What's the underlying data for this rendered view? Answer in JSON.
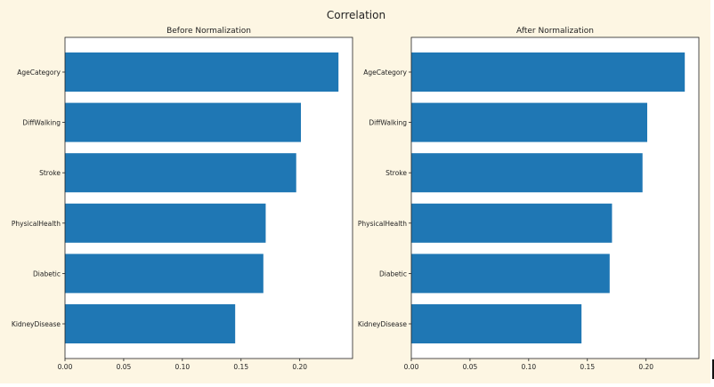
{
  "figure": {
    "suptitle": "Correlation",
    "background": "#fdf6e3",
    "bar_color": "#1f77b4"
  },
  "chart_data": [
    {
      "type": "bar",
      "orientation": "horizontal",
      "title": "Before Normalization",
      "categories": [
        "AgeCategory",
        "DiffWalking",
        "Stroke",
        "PhysicalHealth",
        "Diabetic",
        "KidneyDisease"
      ],
      "values": [
        0.233,
        0.201,
        0.197,
        0.171,
        0.169,
        0.145
      ],
      "xlim": [
        0,
        0.245
      ],
      "xticks": [
        0.0,
        0.05,
        0.1,
        0.15,
        0.2
      ],
      "xtick_labels": [
        "0.00",
        "0.05",
        "0.10",
        "0.15",
        "0.20"
      ],
      "xlabel": "",
      "ylabel": "",
      "grid": false
    },
    {
      "type": "bar",
      "orientation": "horizontal",
      "title": "After Normalization",
      "categories": [
        "AgeCategory",
        "DiffWalking",
        "Stroke",
        "PhysicalHealth",
        "Diabetic",
        "KidneyDisease"
      ],
      "values": [
        0.233,
        0.201,
        0.197,
        0.171,
        0.169,
        0.145
      ],
      "xlim": [
        0,
        0.245
      ],
      "xticks": [
        0.0,
        0.05,
        0.1,
        0.15,
        0.2
      ],
      "xtick_labels": [
        "0.00",
        "0.05",
        "0.10",
        "0.15",
        "0.20"
      ],
      "xlabel": "",
      "ylabel": "",
      "grid": false
    }
  ]
}
